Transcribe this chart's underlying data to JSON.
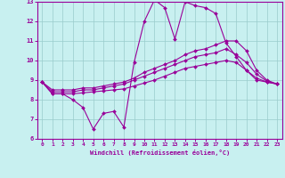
{
  "xlabel": "Windchill (Refroidissement éolien,°C)",
  "ylabel": "",
  "bg_color": "#c8f0f0",
  "line_color": "#990099",
  "grid_color": "#99cccc",
  "xlim": [
    -0.5,
    23.5
  ],
  "ylim": [
    6,
    13
  ],
  "xticks": [
    0,
    1,
    2,
    3,
    4,
    5,
    6,
    7,
    8,
    9,
    10,
    11,
    12,
    13,
    14,
    15,
    16,
    17,
    18,
    19,
    20,
    21,
    22,
    23
  ],
  "yticks": [
    6,
    7,
    8,
    9,
    10,
    11,
    12,
    13
  ],
  "series": {
    "windchill": [
      8.9,
      8.3,
      8.3,
      8.0,
      7.6,
      6.5,
      7.3,
      7.4,
      6.6,
      9.9,
      12.0,
      13.1,
      12.7,
      11.1,
      13.0,
      12.8,
      12.7,
      12.4,
      10.9,
      10.2,
      9.5,
      9.0,
      8.9,
      8.8
    ],
    "temp_max": [
      8.9,
      8.5,
      8.5,
      8.5,
      8.6,
      8.6,
      8.7,
      8.8,
      8.9,
      9.1,
      9.4,
      9.6,
      9.8,
      10.0,
      10.3,
      10.5,
      10.6,
      10.8,
      11.0,
      11.0,
      10.5,
      9.5,
      9.0,
      8.8
    ],
    "temp_mid": [
      8.9,
      8.4,
      8.4,
      8.4,
      8.5,
      8.5,
      8.6,
      8.7,
      8.8,
      9.0,
      9.2,
      9.4,
      9.6,
      9.8,
      10.0,
      10.2,
      10.3,
      10.4,
      10.6,
      10.3,
      9.9,
      9.3,
      8.95,
      8.8
    ],
    "temp_min": [
      8.9,
      8.3,
      8.3,
      8.3,
      8.35,
      8.4,
      8.45,
      8.5,
      8.55,
      8.7,
      8.85,
      9.0,
      9.2,
      9.4,
      9.6,
      9.7,
      9.8,
      9.9,
      10.0,
      9.9,
      9.5,
      9.1,
      8.9,
      8.8
    ]
  }
}
